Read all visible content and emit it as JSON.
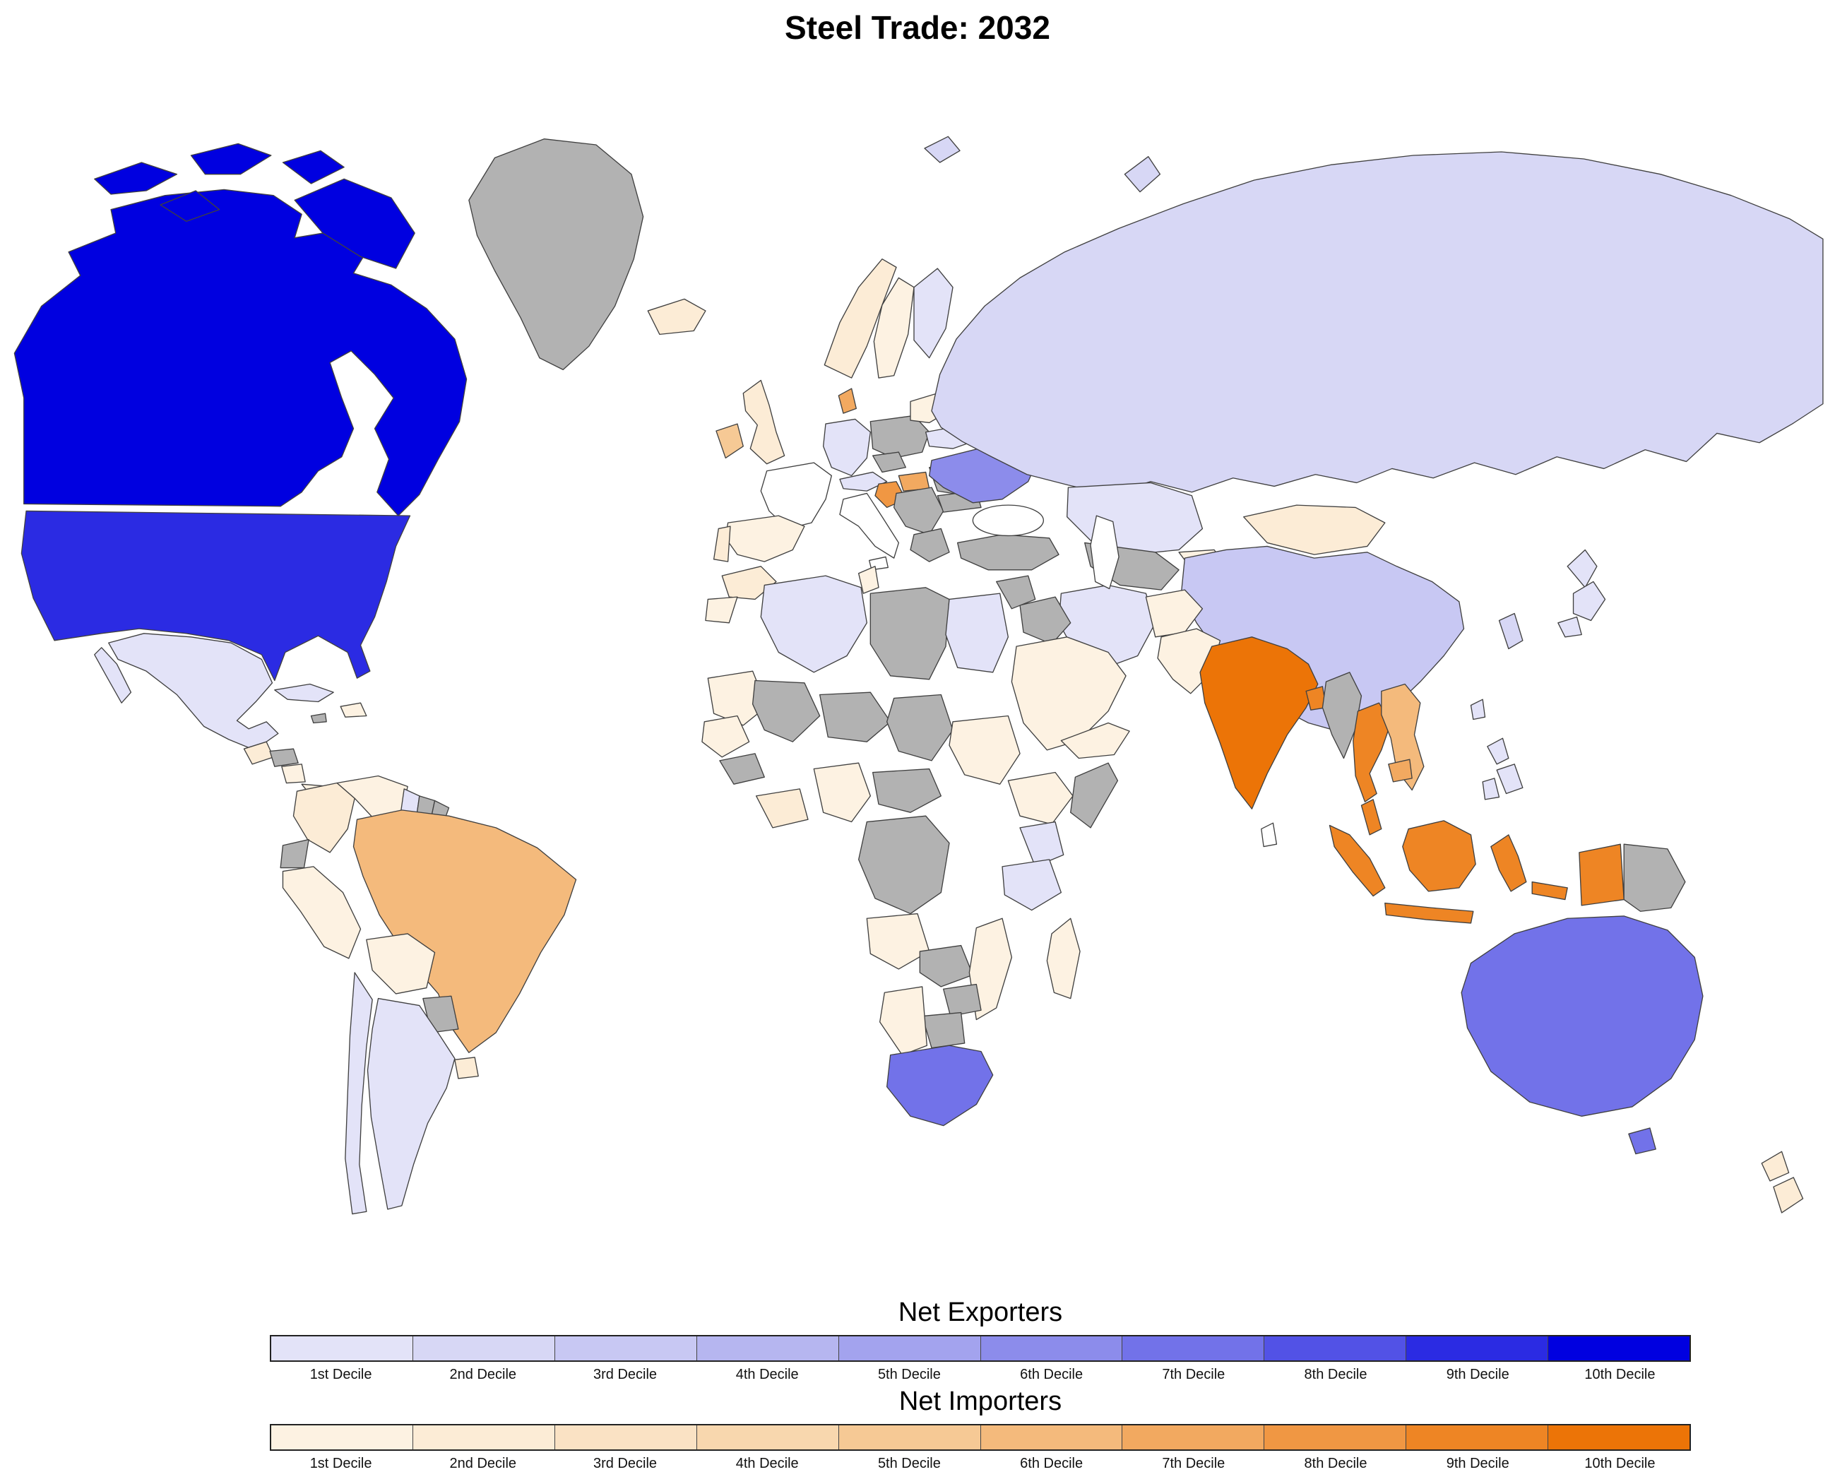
{
  "title": "Steel Trade: 2032",
  "legend_exporters": {
    "title": "Net Exporters",
    "labels": [
      "1st Decile",
      "2nd Decile",
      "3rd Decile",
      "4th Decile",
      "5th Decile",
      "6th Decile",
      "7th Decile",
      "8th Decile",
      "9th Decile",
      "10th Decile"
    ],
    "colors": [
      "#e3e3f8",
      "#d7d7f5",
      "#c8c8f3",
      "#b6b6f0",
      "#a3a3ee",
      "#8c8ceb",
      "#7272e9",
      "#5252e6",
      "#2b2be3",
      "#0000e0"
    ]
  },
  "legend_importers": {
    "title": "Net Importers",
    "labels": [
      "1st Decile",
      "2nd Decile",
      "3rd Decile",
      "4th Decile",
      "5th Decile",
      "6th Decile",
      "7th Decile",
      "8th Decile",
      "9th Decile",
      "10th Decile"
    ],
    "colors": [
      "#fdf2e2",
      "#fcecd6",
      "#fae2c4",
      "#f8d7ae",
      "#f6c995",
      "#f4ba7c",
      "#f2a960",
      "#f09743",
      "#ee8524",
      "#ec7407"
    ]
  },
  "map": {
    "no_data_color": "#b2b2b2",
    "blank_color": "#ffffff",
    "border_color": "#404040",
    "ocean_color": "#ffffff",
    "countries": {
      "canada": "exp10",
      "usa": "exp9",
      "mexico": "exp1",
      "guatemala": "imp2",
      "honduras": "none",
      "nicaragua": "imp1",
      "panama": "imp1",
      "cuba": "exp1",
      "hispaniola": "imp1",
      "jamaica": "none",
      "colombia": "imp2",
      "venezuela": "imp1",
      "guyana": "exp1",
      "suriname": "none",
      "fr_guiana": "none",
      "ecuador": "none",
      "peru": "imp1",
      "brazil": "imp6",
      "bolivia": "imp1",
      "paraguay": "none",
      "uruguay": "imp2",
      "argentina": "exp1",
      "chile": "exp1",
      "greenland": "none",
      "iceland": "imp2",
      "norway": "imp2",
      "sweden": "imp1",
      "finland": "exp1",
      "denmark": "imp7",
      "uk": "imp2",
      "ireland": "imp5",
      "france": "blank",
      "spain": "imp1",
      "portugal": "imp2",
      "germany": "exp1",
      "poland": "none",
      "czech": "none",
      "austria": "exp1",
      "hungary": "imp7",
      "croatia": "imp8",
      "italy": "blank",
      "sicily": "blank",
      "balkans": "none",
      "greece": "none",
      "romania": "none",
      "bulgaria": "none",
      "ukraine": "exp6",
      "belarus": "exp1",
      "baltics": "imp1",
      "turkey": "none",
      "russia": "exp2",
      "kazakhstan": "exp1",
      "uzbekistan": "none",
      "kyrgyzstan": "imp1",
      "mongolia": "imp2",
      "china": "exp3",
      "japan": "exp1",
      "south_korea": "exp2",
      "taiwan": "exp1",
      "iran": "exp1",
      "afghanistan": "imp1",
      "pakistan": "imp1",
      "iraq": "none",
      "syria": "none",
      "saudi_arabia": "imp1",
      "yemen_oman": "imp1",
      "india": "imp10",
      "sri_lanka": "blank",
      "bangladesh": "imp9",
      "myanmar": "none",
      "thailand": "imp9",
      "vietnam_laos": "imp6",
      "cambodia": "imp7",
      "malaysia": "imp9",
      "indonesia": "imp9",
      "papua_new_guinea": "none",
      "philippines": "exp1",
      "morocco": "imp2",
      "western_sahara": "imp1",
      "algeria": "exp1",
      "tunisia": "imp1",
      "libya": "none",
      "egypt": "exp1",
      "mauritania": "imp1",
      "mali": "none",
      "niger": "none",
      "chad": "none",
      "sudan": "imp1",
      "senegal": "imp1",
      "guinea_region": "none",
      "ivory_ghana": "imp2",
      "nigeria": "imp1",
      "cameroon_car": "none",
      "ethiopia": "imp1",
      "somalia": "none",
      "drc": "none",
      "kenya": "exp1",
      "tanzania": "exp1",
      "angola": "imp1",
      "zambia": "none",
      "mozambique": "imp1",
      "zimbabwe": "none",
      "botswana": "none",
      "namibia": "imp1",
      "south_africa": "exp7",
      "madagascar": "imp1",
      "australia": "exp7",
      "new_zealand": "imp2"
    }
  }
}
